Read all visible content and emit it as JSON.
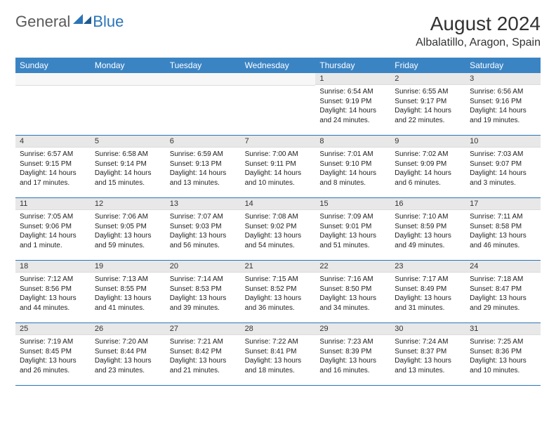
{
  "brand": {
    "general": "General",
    "blue": "Blue"
  },
  "title": "August 2024",
  "location": "Albalatillo, Aragon, Spain",
  "colors": {
    "header_bg": "#3b84c4",
    "header_text": "#ffffff",
    "daynum_bg": "#e8e8e8",
    "border": "#2b74b8",
    "logo_gray": "#5a5a5a",
    "logo_blue": "#2b74b8"
  },
  "day_names": [
    "Sunday",
    "Monday",
    "Tuesday",
    "Wednesday",
    "Thursday",
    "Friday",
    "Saturday"
  ],
  "weeks": [
    [
      {
        "empty": true
      },
      {
        "empty": true
      },
      {
        "empty": true
      },
      {
        "empty": true
      },
      {
        "day": "1",
        "sunrise": "Sunrise: 6:54 AM",
        "sunset": "Sunset: 9:19 PM",
        "dl1": "Daylight: 14 hours",
        "dl2": "and 24 minutes."
      },
      {
        "day": "2",
        "sunrise": "Sunrise: 6:55 AM",
        "sunset": "Sunset: 9:17 PM",
        "dl1": "Daylight: 14 hours",
        "dl2": "and 22 minutes."
      },
      {
        "day": "3",
        "sunrise": "Sunrise: 6:56 AM",
        "sunset": "Sunset: 9:16 PM",
        "dl1": "Daylight: 14 hours",
        "dl2": "and 19 minutes."
      }
    ],
    [
      {
        "day": "4",
        "sunrise": "Sunrise: 6:57 AM",
        "sunset": "Sunset: 9:15 PM",
        "dl1": "Daylight: 14 hours",
        "dl2": "and 17 minutes."
      },
      {
        "day": "5",
        "sunrise": "Sunrise: 6:58 AM",
        "sunset": "Sunset: 9:14 PM",
        "dl1": "Daylight: 14 hours",
        "dl2": "and 15 minutes."
      },
      {
        "day": "6",
        "sunrise": "Sunrise: 6:59 AM",
        "sunset": "Sunset: 9:13 PM",
        "dl1": "Daylight: 14 hours",
        "dl2": "and 13 minutes."
      },
      {
        "day": "7",
        "sunrise": "Sunrise: 7:00 AM",
        "sunset": "Sunset: 9:11 PM",
        "dl1": "Daylight: 14 hours",
        "dl2": "and 10 minutes."
      },
      {
        "day": "8",
        "sunrise": "Sunrise: 7:01 AM",
        "sunset": "Sunset: 9:10 PM",
        "dl1": "Daylight: 14 hours",
        "dl2": "and 8 minutes."
      },
      {
        "day": "9",
        "sunrise": "Sunrise: 7:02 AM",
        "sunset": "Sunset: 9:09 PM",
        "dl1": "Daylight: 14 hours",
        "dl2": "and 6 minutes."
      },
      {
        "day": "10",
        "sunrise": "Sunrise: 7:03 AM",
        "sunset": "Sunset: 9:07 PM",
        "dl1": "Daylight: 14 hours",
        "dl2": "and 3 minutes."
      }
    ],
    [
      {
        "day": "11",
        "sunrise": "Sunrise: 7:05 AM",
        "sunset": "Sunset: 9:06 PM",
        "dl1": "Daylight: 14 hours",
        "dl2": "and 1 minute."
      },
      {
        "day": "12",
        "sunrise": "Sunrise: 7:06 AM",
        "sunset": "Sunset: 9:05 PM",
        "dl1": "Daylight: 13 hours",
        "dl2": "and 59 minutes."
      },
      {
        "day": "13",
        "sunrise": "Sunrise: 7:07 AM",
        "sunset": "Sunset: 9:03 PM",
        "dl1": "Daylight: 13 hours",
        "dl2": "and 56 minutes."
      },
      {
        "day": "14",
        "sunrise": "Sunrise: 7:08 AM",
        "sunset": "Sunset: 9:02 PM",
        "dl1": "Daylight: 13 hours",
        "dl2": "and 54 minutes."
      },
      {
        "day": "15",
        "sunrise": "Sunrise: 7:09 AM",
        "sunset": "Sunset: 9:01 PM",
        "dl1": "Daylight: 13 hours",
        "dl2": "and 51 minutes."
      },
      {
        "day": "16",
        "sunrise": "Sunrise: 7:10 AM",
        "sunset": "Sunset: 8:59 PM",
        "dl1": "Daylight: 13 hours",
        "dl2": "and 49 minutes."
      },
      {
        "day": "17",
        "sunrise": "Sunrise: 7:11 AM",
        "sunset": "Sunset: 8:58 PM",
        "dl1": "Daylight: 13 hours",
        "dl2": "and 46 minutes."
      }
    ],
    [
      {
        "day": "18",
        "sunrise": "Sunrise: 7:12 AM",
        "sunset": "Sunset: 8:56 PM",
        "dl1": "Daylight: 13 hours",
        "dl2": "and 44 minutes."
      },
      {
        "day": "19",
        "sunrise": "Sunrise: 7:13 AM",
        "sunset": "Sunset: 8:55 PM",
        "dl1": "Daylight: 13 hours",
        "dl2": "and 41 minutes."
      },
      {
        "day": "20",
        "sunrise": "Sunrise: 7:14 AM",
        "sunset": "Sunset: 8:53 PM",
        "dl1": "Daylight: 13 hours",
        "dl2": "and 39 minutes."
      },
      {
        "day": "21",
        "sunrise": "Sunrise: 7:15 AM",
        "sunset": "Sunset: 8:52 PM",
        "dl1": "Daylight: 13 hours",
        "dl2": "and 36 minutes."
      },
      {
        "day": "22",
        "sunrise": "Sunrise: 7:16 AM",
        "sunset": "Sunset: 8:50 PM",
        "dl1": "Daylight: 13 hours",
        "dl2": "and 34 minutes."
      },
      {
        "day": "23",
        "sunrise": "Sunrise: 7:17 AM",
        "sunset": "Sunset: 8:49 PM",
        "dl1": "Daylight: 13 hours",
        "dl2": "and 31 minutes."
      },
      {
        "day": "24",
        "sunrise": "Sunrise: 7:18 AM",
        "sunset": "Sunset: 8:47 PM",
        "dl1": "Daylight: 13 hours",
        "dl2": "and 29 minutes."
      }
    ],
    [
      {
        "day": "25",
        "sunrise": "Sunrise: 7:19 AM",
        "sunset": "Sunset: 8:45 PM",
        "dl1": "Daylight: 13 hours",
        "dl2": "and 26 minutes."
      },
      {
        "day": "26",
        "sunrise": "Sunrise: 7:20 AM",
        "sunset": "Sunset: 8:44 PM",
        "dl1": "Daylight: 13 hours",
        "dl2": "and 23 minutes."
      },
      {
        "day": "27",
        "sunrise": "Sunrise: 7:21 AM",
        "sunset": "Sunset: 8:42 PM",
        "dl1": "Daylight: 13 hours",
        "dl2": "and 21 minutes."
      },
      {
        "day": "28",
        "sunrise": "Sunrise: 7:22 AM",
        "sunset": "Sunset: 8:41 PM",
        "dl1": "Daylight: 13 hours",
        "dl2": "and 18 minutes."
      },
      {
        "day": "29",
        "sunrise": "Sunrise: 7:23 AM",
        "sunset": "Sunset: 8:39 PM",
        "dl1": "Daylight: 13 hours",
        "dl2": "and 16 minutes."
      },
      {
        "day": "30",
        "sunrise": "Sunrise: 7:24 AM",
        "sunset": "Sunset: 8:37 PM",
        "dl1": "Daylight: 13 hours",
        "dl2": "and 13 minutes."
      },
      {
        "day": "31",
        "sunrise": "Sunrise: 7:25 AM",
        "sunset": "Sunset: 8:36 PM",
        "dl1": "Daylight: 13 hours",
        "dl2": "and 10 minutes."
      }
    ]
  ]
}
